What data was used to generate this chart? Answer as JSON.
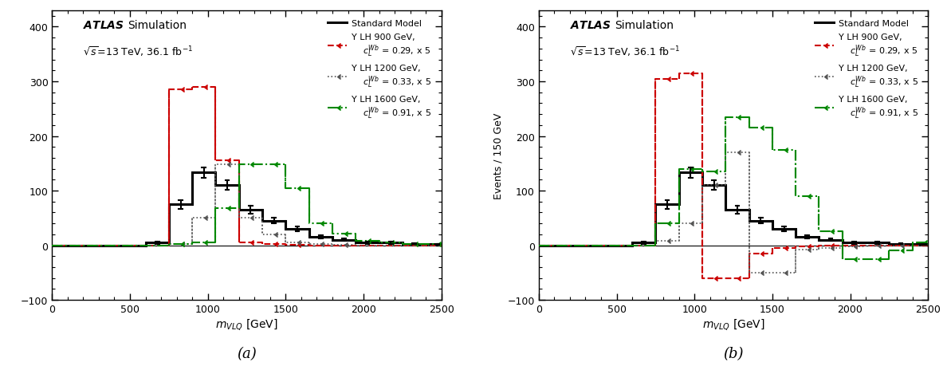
{
  "bin_edges": [
    0,
    150,
    300,
    450,
    600,
    750,
    900,
    1050,
    1200,
    1350,
    1500,
    1650,
    1800,
    1950,
    2100,
    2250,
    2400,
    2550
  ],
  "sm_a": [
    0,
    0,
    0,
    0,
    5,
    75,
    133,
    110,
    65,
    45,
    30,
    15,
    10,
    5,
    5,
    3,
    2
  ],
  "sm_err_a": [
    0,
    0,
    0,
    0,
    2,
    8,
    10,
    9,
    7,
    5,
    4,
    3,
    2,
    2,
    2,
    1,
    1
  ],
  "sig900_a": [
    0,
    0,
    0,
    0,
    0,
    285,
    290,
    155,
    5,
    2,
    1,
    0,
    0,
    0,
    0,
    0,
    0
  ],
  "sig1200_a": [
    0,
    0,
    0,
    0,
    0,
    2,
    50,
    148,
    50,
    20,
    5,
    2,
    1,
    0,
    0,
    0,
    0
  ],
  "sig1600_a": [
    0,
    0,
    0,
    0,
    0,
    2,
    5,
    68,
    148,
    148,
    105,
    40,
    22,
    8,
    5,
    3,
    2
  ],
  "sm_b": [
    0,
    0,
    0,
    0,
    5,
    75,
    133,
    110,
    65,
    45,
    30,
    15,
    10,
    5,
    5,
    3,
    2
  ],
  "sm_err_b": [
    0,
    0,
    0,
    0,
    2,
    8,
    10,
    9,
    7,
    5,
    4,
    3,
    2,
    2,
    2,
    1,
    1
  ],
  "sig900_b": [
    0,
    0,
    0,
    0,
    0,
    305,
    315,
    -60,
    -60,
    -15,
    -5,
    -2,
    -1,
    -1,
    0,
    0,
    0
  ],
  "sig1200_b": [
    0,
    0,
    0,
    0,
    0,
    8,
    40,
    110,
    170,
    -50,
    -50,
    -8,
    -5,
    -2,
    -1,
    -1,
    0
  ],
  "sig1600_b": [
    0,
    0,
    0,
    0,
    0,
    40,
    140,
    135,
    235,
    215,
    175,
    90,
    25,
    -25,
    -25,
    -10,
    5
  ],
  "sm_color": "#000000",
  "sig900_color": "#cc0000",
  "sig1200_color": "#555555",
  "sig1600_color": "#008800",
  "ylim": [
    -100,
    430
  ],
  "xlim": [
    0,
    2500
  ],
  "xlabel": "$m_{VLQ}$ [GeV]",
  "ylabel_a": "",
  "ylabel_b": "Events / 150 GeV",
  "energy_text": "$\\sqrt{s}$=13 TeV, 36.1 fb$^{-1}$",
  "legend_sm": "Standard Model",
  "legend_900_title": "Y LH 900 GeV,",
  "legend_900_sub": "$c_L^{Wb}$ = 0.29, x 5",
  "legend_1200_title": "Y LH 1200 GeV,",
  "legend_1200_sub": "$c_L^{Wb}$ = 0.33, x 5",
  "legend_1600_title": "Y LH 1600 GeV,",
  "legend_1600_sub": "$c_L^{Wb}$ = 0.91, x 5",
  "label_a": "(a)",
  "label_b": "(b)"
}
